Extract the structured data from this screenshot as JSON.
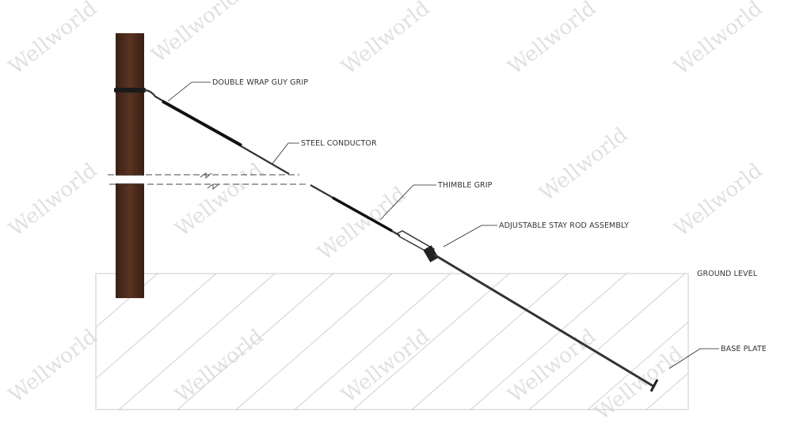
{
  "labels": {
    "guy_grip": "DOUBLE WRAP GUY GRIP",
    "steel_conductor": "STEEL CONDUCTOR",
    "thimble_grip": "THIMBLE GRIP",
    "stay_rod": "ADJUSTABLE STAY ROD ASSEMBLY",
    "ground_level": "GROUND LEVEL",
    "base_plate": "BASE PLATE"
  },
  "watermark": "Wellworld",
  "colors": {
    "pole": "#4a2a1a",
    "wire": "#2b2b2b",
    "ground": "#c8c8c8"
  }
}
